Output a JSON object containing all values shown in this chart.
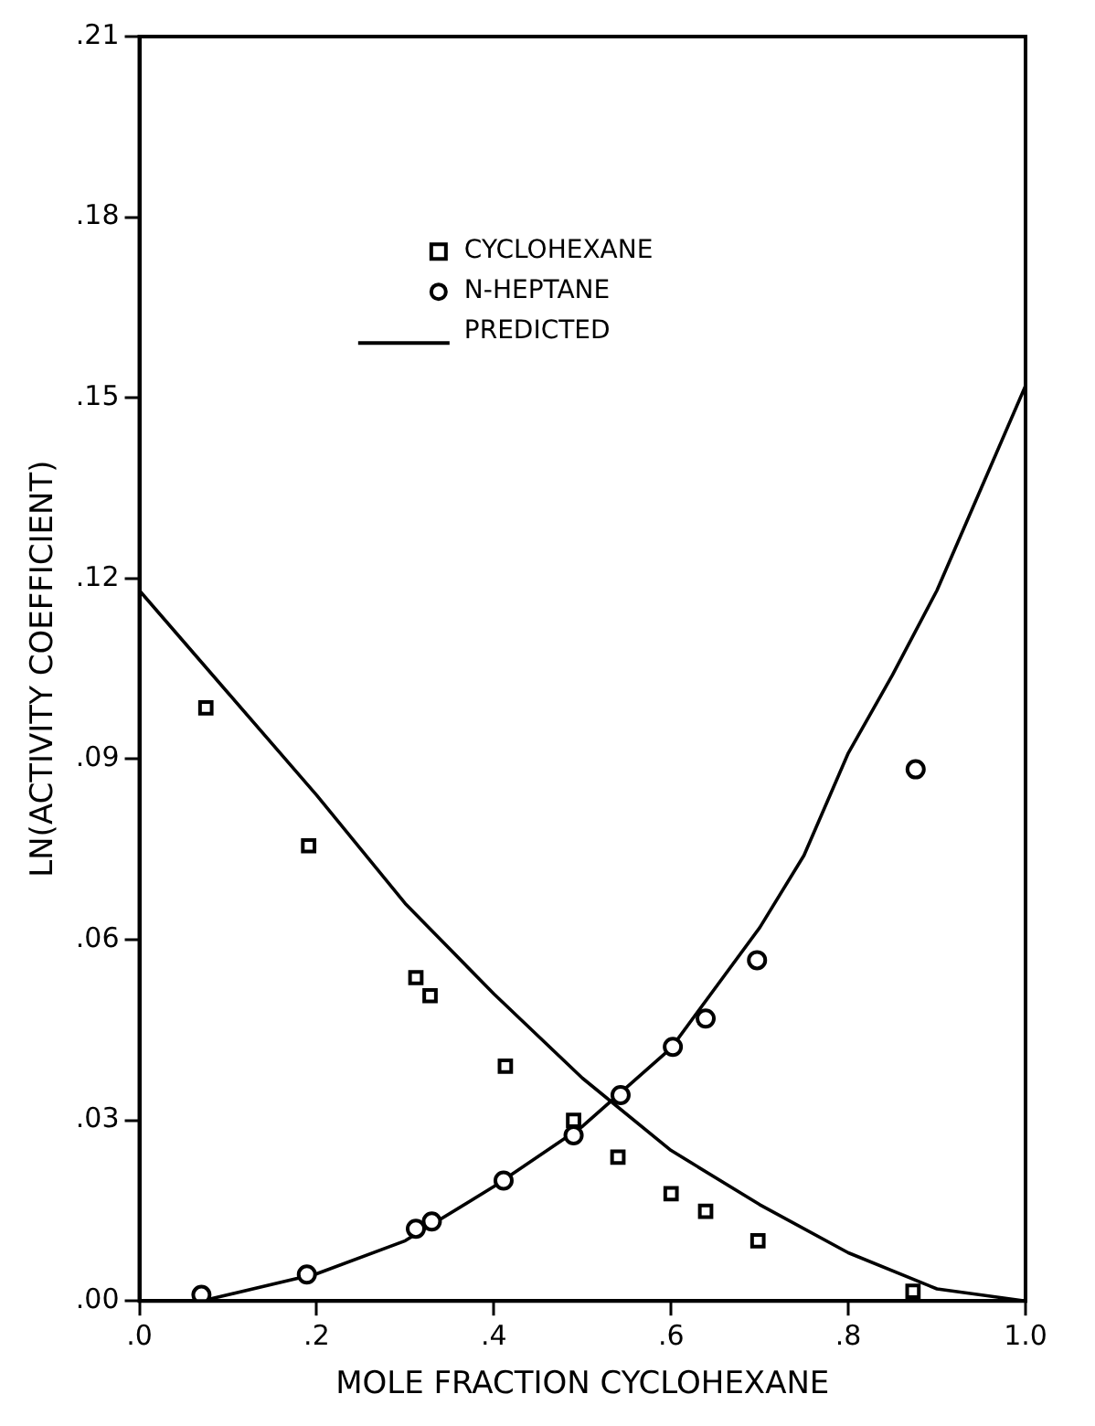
{
  "chart_data": {
    "type": "scatter",
    "xlabel": "MOLE FRACTION CYCLOHEXANE",
    "ylabel": "LN(ACTIVITY COEFFICIENT)",
    "xlim": [
      0,
      1
    ],
    "ylim": [
      0,
      0.21
    ],
    "xticks": [
      {
        "value": 0,
        "label": ".0"
      },
      {
        "value": 0.2,
        "label": ".2"
      },
      {
        "value": 0.4,
        "label": ".4"
      },
      {
        "value": 0.6,
        "label": ".6"
      },
      {
        "value": 0.8,
        "label": ".8"
      },
      {
        "value": 1,
        "label": "1.0"
      }
    ],
    "yticks": [
      {
        "value": 0,
        "label": ".00"
      },
      {
        "value": 0.03,
        "label": ".03"
      },
      {
        "value": 0.06,
        "label": ".06"
      },
      {
        "value": 0.09,
        "label": ".09"
      },
      {
        "value": 0.12,
        "label": ".12"
      },
      {
        "value": 0.15,
        "label": ".15"
      },
      {
        "value": 0.18,
        "label": ".18"
      },
      {
        "value": 0.21,
        "label": ".21"
      }
    ],
    "grid": false,
    "legend": "top",
    "series": [
      {
        "name": "CYCLOHEXANE",
        "type": "scatter",
        "marker": "square",
        "color": "#000000",
        "x": [
          0.075,
          0.191,
          0.312,
          0.328,
          0.413,
          0.49,
          0.54,
          0.6,
          0.639,
          0.698,
          0.873
        ],
        "values": [
          0.0985,
          0.0756,
          0.0537,
          0.0507,
          0.039,
          0.03,
          0.0239,
          0.0178,
          0.0149,
          0.01,
          0.0016
        ]
      },
      {
        "name": "N-HEPTANE",
        "type": "scatter",
        "marker": "circle",
        "color": "#000000",
        "x": [
          0.07,
          0.189,
          0.312,
          0.33,
          0.411,
          0.49,
          0.543,
          0.602,
          0.639,
          0.697,
          0.876
        ],
        "values": [
          0.001,
          0.0044,
          0.012,
          0.0132,
          0.02,
          0.0275,
          0.0342,
          0.0422,
          0.0469,
          0.0566,
          0.0883
        ]
      },
      {
        "name": "PREDICTED",
        "type": "line",
        "marker": "none",
        "line_style": "solid",
        "color": "#000000",
        "x": [
          0,
          0.1,
          0.2,
          0.3,
          0.4,
          0.5,
          0.6,
          0.7,
          0.8,
          0.9,
          1.0
        ],
        "values": [
          0.118,
          0.101,
          0.084,
          0.066,
          0.051,
          0.037,
          0.025,
          0.016,
          0.008,
          0.002,
          0
        ]
      },
      {
        "type": "line",
        "marker": "none",
        "line_style": "solid",
        "color": "#000000",
        "x": [
          0.07,
          0.2,
          0.3,
          0.4,
          0.5,
          0.6,
          0.7,
          0.75,
          0.8,
          0.85,
          0.9,
          0.95,
          1.0
        ],
        "values": [
          0,
          0.0045,
          0.01,
          0.019,
          0.029,
          0.042,
          0.062,
          0.074,
          0.091,
          0.104,
          0.118,
          0.135,
          0.152
        ]
      }
    ]
  }
}
